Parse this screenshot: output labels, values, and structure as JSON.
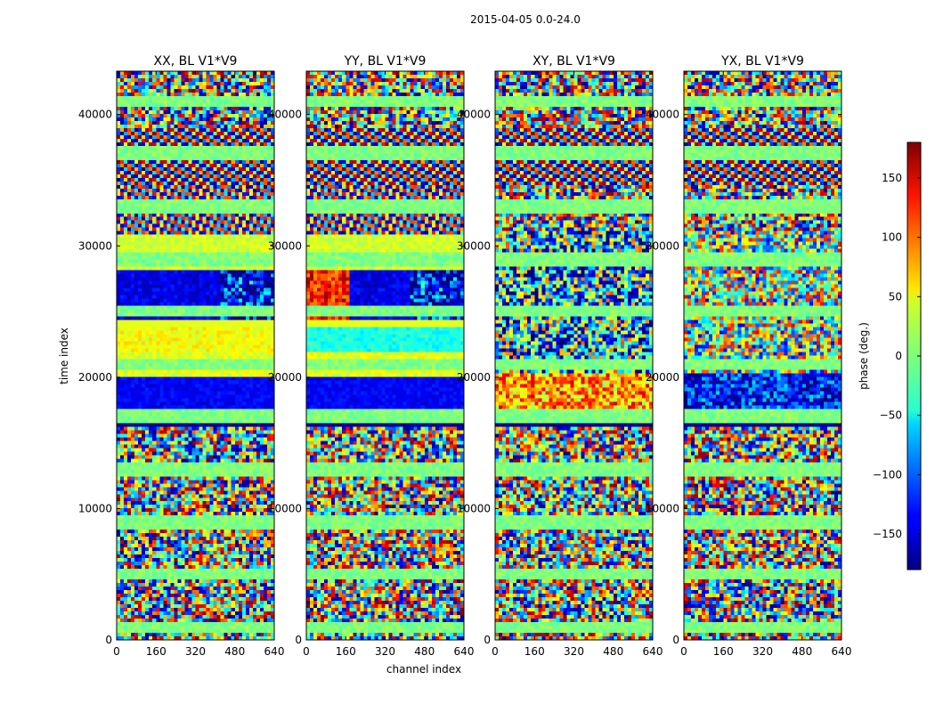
{
  "chart_data": {
    "type": "heatmap",
    "title": "2015-04-05 0.0-24.0",
    "xlabel": "channel index",
    "ylabel": "time index",
    "xlim": [
      0,
      640
    ],
    "ylim": [
      0,
      43300
    ],
    "x_ticks": [
      0,
      160,
      320,
      480,
      640
    ],
    "y_ticks": [
      0,
      10000,
      20000,
      30000,
      40000
    ],
    "y_tick_labels": [
      "0",
      "10000",
      "20000",
      "30000",
      "40000"
    ],
    "colormap": "jet",
    "panels": [
      {
        "title": "XX, BL V1*V9",
        "pol": "XX"
      },
      {
        "title": "YY, BL V1*V9",
        "pol": "YY"
      },
      {
        "title": "XY, BL V1*V9",
        "pol": "XY"
      },
      {
        "title": "YX, BL V1*V9",
        "pol": "YX"
      }
    ],
    "colorbar": {
      "label": "phase (deg.)",
      "range": [
        -180,
        180
      ],
      "ticks": [
        150,
        100,
        50,
        0,
        -50,
        -100,
        -150
      ],
      "tick_labels": [
        "150",
        "100",
        "50",
        "0",
        "−50",
        "−100",
        "−150"
      ]
    }
  }
}
